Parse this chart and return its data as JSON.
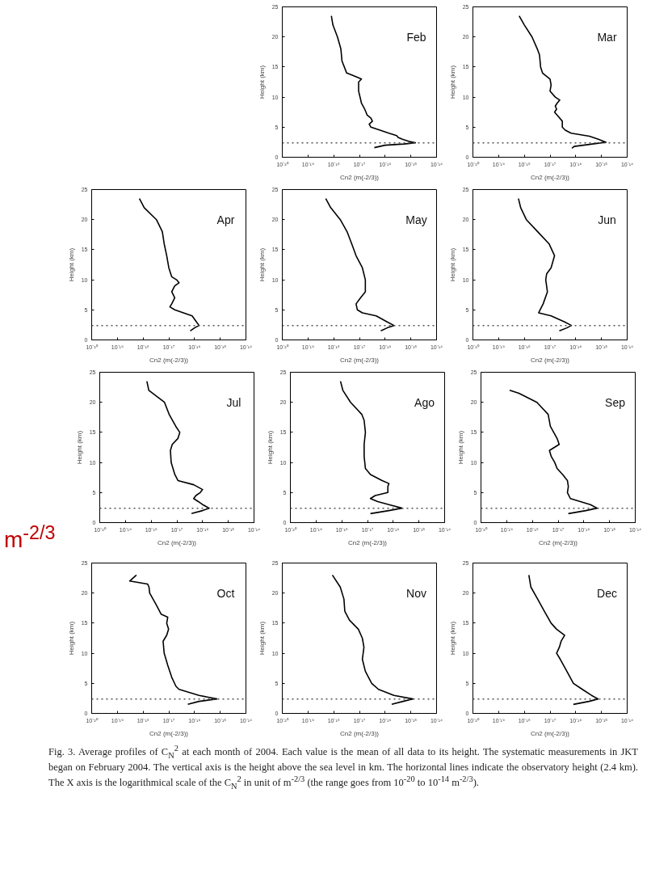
{
  "chart_data": [
    {
      "type": "line",
      "title": "Feb",
      "xlabel": "Cn2 (m(-2/3))",
      "ylabel": "Height (km)",
      "log": "x",
      "xlim": [
        1e-20,
        1e-14
      ],
      "xticks": [
        {
          "value": 1e-20,
          "label": "10⁻²⁰"
        },
        {
          "value": 1e-19,
          "label": "10⁻¹⁹"
        },
        {
          "value": 1e-18,
          "label": "10⁻¹⁸"
        },
        {
          "value": 1e-17,
          "label": "10⁻¹⁷"
        },
        {
          "value": 1e-16,
          "label": "10⁻¹⁶"
        },
        {
          "value": 1e-15,
          "label": "10⁻¹⁵"
        },
        {
          "value": 1e-14,
          "label": "10⁻¹⁴"
        }
      ],
      "ylim": [
        0,
        25
      ],
      "yticks": [
        0,
        5,
        10,
        15,
        20,
        25
      ],
      "grid": false,
      "marker": "none",
      "line_style": "solid",
      "ref_lines": [
        {
          "axis": "y",
          "value": 2.4,
          "label": null,
          "color": "#555555",
          "line_style": "dotted"
        }
      ],
      "series": [
        {
          "color": "#000000",
          "x": [
            8.1e-19,
            9.3e-19,
            1.4e-18,
            1.9e-18,
            2.1e-18,
            3.2e-18,
            6.3e-18,
            1.2e-17,
            9.3e-18,
            9.3e-18,
            1.2e-17,
            1.6e-17,
            1.8e-17,
            2e-17,
            2.8e-17,
            3.2e-17,
            2.4e-17,
            2.8e-17,
            6.3e-17,
            1.4e-16,
            2.8e-16,
            3.2e-16,
            4.7e-16,
            9.1e-16,
            1.5e-15,
            5.4e-16,
            1e-16,
            3.8e-17
          ],
          "values": [
            23.5,
            22,
            20,
            18,
            16,
            14,
            13.5,
            13,
            12.5,
            11,
            9,
            8,
            7.5,
            7,
            6.5,
            6,
            5.5,
            5,
            4.5,
            4,
            3.6,
            3.3,
            3,
            2.6,
            2.4,
            2.2,
            2,
            1.6
          ]
        }
      ]
    },
    {
      "type": "line",
      "title": "Mar",
      "xlabel": "Cn2 (m(-2/3))",
      "ylabel": "Height (km)",
      "log": "x",
      "xlim": [
        1e-20,
        1e-14
      ],
      "xticks": [
        {
          "value": 1e-20,
          "label": "10⁻²⁰"
        },
        {
          "value": 1e-19,
          "label": "10⁻¹⁹"
        },
        {
          "value": 1e-18,
          "label": "10⁻¹⁸"
        },
        {
          "value": 1e-17,
          "label": "10⁻¹⁷"
        },
        {
          "value": 1e-16,
          "label": "10⁻¹⁶"
        },
        {
          "value": 1e-15,
          "label": "10⁻¹⁵"
        },
        {
          "value": 1e-14,
          "label": "10⁻¹⁴"
        }
      ],
      "ylim": [
        0,
        25
      ],
      "yticks": [
        0,
        5,
        10,
        15,
        20,
        25
      ],
      "grid": false,
      "marker": "none",
      "line_style": "solid",
      "ref_lines": [
        {
          "axis": "y",
          "value": 2.4,
          "label": null,
          "color": "#555555",
          "line_style": "dotted"
        }
      ],
      "series": [
        {
          "color": "#000000",
          "x": [
            6.3e-19,
            1e-18,
            2e-18,
            3.2e-18,
            3.9e-18,
            4.3e-18,
            5.1e-18,
            1e-17,
            1.1e-17,
            1e-17,
            1.6e-17,
            2.4e-17,
            1.9e-17,
            1.6e-17,
            1.8e-17,
            1.5e-17,
            1.9e-17,
            3e-17,
            3e-17,
            3.9e-17,
            6.6e-17,
            3.4e-16,
            7.6e-16,
            1.5e-15,
            4.5e-16,
            8.7e-17,
            7.1e-17
          ],
          "values": [
            23.5,
            22,
            20,
            18,
            17,
            15,
            14,
            13,
            12,
            11,
            10,
            9.5,
            9,
            8.5,
            8,
            7.5,
            7,
            6,
            5,
            4.5,
            4,
            3.5,
            3,
            2.5,
            2.2,
            1.8,
            1.5
          ]
        }
      ]
    },
    {
      "type": "line",
      "title": "Apr",
      "xlabel": "Cn2 (m(-2/3))",
      "ylabel": "Height (km)",
      "log": "x",
      "xlim": [
        1e-20,
        1e-14
      ],
      "xticks": [
        {
          "value": 1e-20,
          "label": "10⁻²⁰"
        },
        {
          "value": 1e-19,
          "label": "10⁻¹⁹"
        },
        {
          "value": 1e-18,
          "label": "10⁻¹⁸"
        },
        {
          "value": 1e-17,
          "label": "10⁻¹⁷"
        },
        {
          "value": 1e-16,
          "label": "10⁻¹⁶"
        },
        {
          "value": 1e-15,
          "label": "10⁻¹⁵"
        },
        {
          "value": 1e-14,
          "label": "10⁻¹⁴"
        }
      ],
      "ylim": [
        0,
        25
      ],
      "yticks": [
        0,
        5,
        10,
        15,
        20,
        25
      ],
      "grid": false,
      "marker": "none",
      "line_style": "solid",
      "ref_lines": [
        {
          "axis": "y",
          "value": 2.4,
          "label": null,
          "color": "#555555",
          "line_style": "dotted"
        }
      ],
      "series": [
        {
          "color": "#000000",
          "x": [
            7.2e-19,
            1.1e-18,
            3.3e-18,
            5.6e-18,
            6.6e-18,
            8.3e-18,
            1e-17,
            1.3e-17,
            2e-17,
            2.5e-17,
            1.7e-17,
            1.3e-17,
            1.7e-17,
            1.3e-17,
            1.1e-17,
            1.7e-17,
            3.7e-17,
            8.1e-17,
            1.1e-16,
            1.5e-16,
            1e-16,
            6.8e-17
          ],
          "values": [
            23.5,
            22,
            20,
            18,
            16,
            14,
            12,
            10.5,
            10,
            9.5,
            9,
            8,
            7,
            6,
            5.5,
            5,
            4.5,
            4,
            3.2,
            2.4,
            2,
            1.5
          ]
        }
      ]
    },
    {
      "type": "line",
      "title": "May",
      "xlabel": "Cn2 (m(-2/3))",
      "ylabel": "Height (km)",
      "log": "x",
      "xlim": [
        1e-20,
        1e-14
      ],
      "xticks": [
        {
          "value": 1e-20,
          "label": "10⁻²⁰"
        },
        {
          "value": 1e-19,
          "label": "10⁻¹⁹"
        },
        {
          "value": 1e-18,
          "label": "10⁻¹⁸"
        },
        {
          "value": 1e-17,
          "label": "10⁻¹⁷"
        },
        {
          "value": 1e-16,
          "label": "10⁻¹⁶"
        },
        {
          "value": 1e-15,
          "label": "10⁻¹⁵"
        },
        {
          "value": 1e-14,
          "label": "10⁻¹⁴"
        }
      ],
      "ylim": [
        0,
        25
      ],
      "yticks": [
        0,
        5,
        10,
        15,
        20,
        25
      ],
      "grid": false,
      "marker": "none",
      "line_style": "solid",
      "ref_lines": [
        {
          "axis": "y",
          "value": 2.4,
          "label": null,
          "color": "#555555",
          "line_style": "dotted"
        }
      ],
      "series": [
        {
          "color": "#000000",
          "x": [
            4.9e-19,
            7.6e-19,
            1.8e-18,
            3.3e-18,
            5e-18,
            7.4e-18,
            1.3e-17,
            1.7e-17,
            1.7e-17,
            1.1e-17,
            7.4e-18,
            8.3e-18,
            1.3e-17,
            4.5e-17,
            1.2e-16,
            2.2e-16,
            1.2e-16,
            6.8e-17
          ],
          "values": [
            23.5,
            22,
            20,
            18,
            16,
            14,
            12,
            10,
            8,
            7,
            6,
            5,
            4.5,
            4,
            3,
            2.4,
            2,
            1.5
          ]
        }
      ]
    },
    {
      "type": "line",
      "title": "Jun",
      "xlabel": "Cn2 (m(-2/3))",
      "ylabel": "Height (km)",
      "log": "x",
      "xlim": [
        1e-20,
        1e-14
      ],
      "xticks": [
        {
          "value": 1e-20,
          "label": "10⁻²⁰"
        },
        {
          "value": 1e-19,
          "label": "10⁻¹⁹"
        },
        {
          "value": 1e-18,
          "label": "10⁻¹⁸"
        },
        {
          "value": 1e-17,
          "label": "10⁻¹⁷"
        },
        {
          "value": 1e-16,
          "label": "10⁻¹⁶"
        },
        {
          "value": 1e-15,
          "label": "10⁻¹⁵"
        },
        {
          "value": 1e-14,
          "label": "10⁻¹⁴"
        }
      ],
      "ylim": [
        0,
        25
      ],
      "yticks": [
        0,
        5,
        10,
        15,
        20,
        25
      ],
      "grid": false,
      "marker": "none",
      "line_style": "solid",
      "ref_lines": [
        {
          "axis": "y",
          "value": 2.4,
          "label": null,
          "color": "#555555",
          "line_style": "dotted"
        }
      ],
      "series": [
        {
          "color": "#000000",
          "x": [
            5.9e-19,
            7.2e-19,
            1.2e-18,
            3.3e-18,
            9.1e-18,
            1.5e-17,
            1.1e-17,
            7.4e-18,
            6.8e-18,
            7.9e-18,
            5.4e-18,
            4.1e-18,
            3.6e-18,
            1.1e-17,
            3.7e-17,
            6.8e-17,
            4.5e-17,
            2.3e-17
          ],
          "values": [
            23.5,
            22,
            20,
            18,
            16,
            14,
            12,
            11,
            10,
            8,
            6,
            5,
            4.5,
            4,
            3,
            2.4,
            2,
            1.5
          ]
        }
      ]
    },
    {
      "type": "line",
      "title": "Jul",
      "xlabel": "Cn2 (m(-2/3))",
      "ylabel": "Height (km)",
      "log": "x",
      "xlim": [
        1e-20,
        1e-14
      ],
      "xticks": [
        {
          "value": 1e-20,
          "label": "10⁻²⁰"
        },
        {
          "value": 1e-19,
          "label": "10⁻¹⁹"
        },
        {
          "value": 1e-18,
          "label": "10⁻¹⁸"
        },
        {
          "value": 1e-17,
          "label": "10⁻¹⁷"
        },
        {
          "value": 1e-16,
          "label": "10⁻¹⁶"
        },
        {
          "value": 1e-15,
          "label": "10⁻¹⁵"
        },
        {
          "value": 1e-14,
          "label": "10⁻¹⁴"
        }
      ],
      "ylim": [
        0,
        25
      ],
      "yticks": [
        0,
        5,
        10,
        15,
        20,
        25
      ],
      "grid": false,
      "marker": "none",
      "line_style": "solid",
      "ref_lines": [
        {
          "axis": "y",
          "value": 2.4,
          "label": null,
          "color": "#555555",
          "line_style": "dotted"
        }
      ],
      "annotations": [
        "m$^{-2/3}$"
      ],
      "series": [
        {
          "color": "#000000",
          "x": [
            6.8e-19,
            8.1e-19,
            3.3e-18,
            5e-18,
            9.1e-18,
            1.3e-17,
            1.1e-17,
            6.6e-18,
            5.6e-18,
            6e-18,
            8.3e-18,
            1.1e-17,
            4.5e-17,
            1e-16,
            8.1e-17,
            5.5e-17,
            4.5e-17,
            6.8e-17,
            1e-16,
            1.8e-16,
            1e-16,
            3.7e-17
          ],
          "values": [
            23.5,
            22,
            20,
            18,
            16,
            15,
            14,
            13,
            12,
            10,
            8,
            7,
            6.3,
            5.5,
            5,
            4.5,
            4,
            3.5,
            3,
            2.4,
            2,
            1.5
          ]
        }
      ]
    },
    {
      "type": "line",
      "title": "Ago",
      "xlabel": "Cn2 (m(-2/3))",
      "ylabel": "Height (km)",
      "log": "x",
      "xlim": [
        1e-20,
        1e-14
      ],
      "xticks": [
        {
          "value": 1e-20,
          "label": "10⁻²⁰"
        },
        {
          "value": 1e-19,
          "label": "10⁻¹⁹"
        },
        {
          "value": 1e-18,
          "label": "10⁻¹⁸"
        },
        {
          "value": 1e-17,
          "label": "10⁻¹⁷"
        },
        {
          "value": 1e-16,
          "label": "10⁻¹⁶"
        },
        {
          "value": 1e-15,
          "label": "10⁻¹⁵"
        },
        {
          "value": 1e-14,
          "label": "10⁻¹⁴"
        }
      ],
      "ylim": [
        0,
        25
      ],
      "yticks": [
        0,
        5,
        10,
        15,
        20,
        25
      ],
      "grid": false,
      "marker": "none",
      "line_style": "solid",
      "ref_lines": [
        {
          "axis": "y",
          "value": 2.4,
          "label": null,
          "color": "#555555",
          "line_style": "dotted"
        }
      ],
      "series": [
        {
          "color": "#000000",
          "x": [
            8.9e-19,
            1.1e-18,
            2.2e-18,
            6e-18,
            7.4e-18,
            8.3e-18,
            7.4e-18,
            7.4e-18,
            8.3e-18,
            1.3e-17,
            3.7e-17,
            6.8e-17,
            6.2e-17,
            6.2e-17,
            2e-17,
            1.3e-17,
            2.5e-17,
            6.8e-17,
            2.2e-16,
            6.8e-17,
            1.3e-17
          ],
          "values": [
            23.5,
            22,
            20,
            18,
            17,
            15,
            13,
            11,
            9,
            8,
            7,
            6.5,
            6,
            5,
            4.5,
            4,
            3.5,
            3,
            2.4,
            2,
            1.5
          ]
        }
      ]
    },
    {
      "type": "line",
      "title": "Sep",
      "xlabel": "Cn2 (m(-2/3))",
      "ylabel": "Height (km)",
      "log": "x",
      "xlim": [
        1e-20,
        1e-14
      ],
      "xticks": [
        {
          "value": 1e-20,
          "label": "10⁻²⁰"
        },
        {
          "value": 1e-19,
          "label": "10⁻¹⁹"
        },
        {
          "value": 1e-18,
          "label": "10⁻¹⁸"
        },
        {
          "value": 1e-17,
          "label": "10⁻¹⁷"
        },
        {
          "value": 1e-16,
          "label": "10⁻¹⁶"
        },
        {
          "value": 1e-15,
          "label": "10⁻¹⁵"
        },
        {
          "value": 1e-14,
          "label": "10⁻¹⁴"
        }
      ],
      "ylim": [
        0,
        25
      ],
      "yticks": [
        0,
        5,
        10,
        15,
        20,
        25
      ],
      "grid": false,
      "marker": "none",
      "line_style": "solid",
      "ref_lines": [
        {
          "axis": "y",
          "value": 2.4,
          "label": null,
          "color": "#555555",
          "line_style": "dotted"
        }
      ],
      "series": [
        {
          "color": "#000000",
          "x": [
            1.3e-19,
            3e-19,
            1.5e-18,
            4.1e-18,
            5e-18,
            9.1e-18,
            1.1e-17,
            4.6e-18,
            5.4e-18,
            7.4e-18,
            9.1e-18,
            1.5e-17,
            2.3e-17,
            2.5e-17,
            2.3e-17,
            3e-17,
            1.8e-16,
            3.3e-16,
            1.2e-16,
            2.5e-17
          ],
          "values": [
            22,
            21.5,
            20,
            18,
            16,
            14,
            13,
            12,
            11,
            10,
            9,
            8,
            7,
            6,
            5,
            4,
            3,
            2.4,
            2,
            1.5
          ]
        }
      ]
    },
    {
      "type": "line",
      "title": "Oct",
      "xlabel": "Cn2 (m(-2/3))",
      "ylabel": "Height (km)",
      "log": "x",
      "xlim": [
        1e-20,
        1e-14
      ],
      "xticks": [
        {
          "value": 1e-20,
          "label": "10⁻²⁰"
        },
        {
          "value": 1e-19,
          "label": "10⁻¹⁹"
        },
        {
          "value": 1e-18,
          "label": "10⁻¹⁸"
        },
        {
          "value": 1e-17,
          "label": "10⁻¹⁷"
        },
        {
          "value": 1e-16,
          "label": "10⁻¹⁶"
        },
        {
          "value": 1e-15,
          "label": "10⁻¹⁵"
        },
        {
          "value": 1e-14,
          "label": "10⁻¹⁴"
        }
      ],
      "ylim": [
        0,
        25
      ],
      "yticks": [
        0,
        5,
        10,
        15,
        20,
        25
      ],
      "grid": false,
      "marker": "none",
      "line_style": "solid",
      "ref_lines": [
        {
          "axis": "y",
          "value": 2.4,
          "label": null,
          "color": "#555555",
          "line_style": "dotted"
        }
      ],
      "series": [
        {
          "color": "#000000",
          "x": [
            5.5e-19,
            3e-19,
            1.5e-18,
            1.7e-18,
            1.8e-18,
            3.3e-18,
            5e-18,
            9.1e-18,
            8.3e-18,
            9.8e-18,
            8.3e-18,
            6e-18,
            6.6e-18,
            9.1e-18,
            1.3e-17,
            1.9e-17,
            2.5e-17,
            1.5e-16,
            7.4e-16,
            1.5e-16,
            5.5e-17
          ],
          "values": [
            23,
            22,
            21.5,
            21,
            20,
            18,
            16.5,
            16,
            15,
            14,
            13,
            12,
            10,
            8,
            6,
            4.5,
            4,
            3,
            2.4,
            2,
            1.5
          ]
        }
      ]
    },
    {
      "type": "line",
      "title": "Nov",
      "xlabel": "Cn2 (m(-2/3))",
      "ylabel": "Height (km)",
      "log": "x",
      "xlim": [
        1e-20,
        1e-14
      ],
      "xticks": [
        {
          "value": 1e-20,
          "label": "10⁻²⁰"
        },
        {
          "value": 1e-19,
          "label": "10⁻¹⁹"
        },
        {
          "value": 1e-18,
          "label": "10⁻¹⁸"
        },
        {
          "value": 1e-17,
          "label": "10⁻¹⁷"
        },
        {
          "value": 1e-16,
          "label": "10⁻¹⁶"
        },
        {
          "value": 1e-15,
          "label": "10⁻¹⁵"
        },
        {
          "value": 1e-14,
          "label": "10⁻¹⁴"
        }
      ],
      "ylim": [
        0,
        25
      ],
      "yticks": [
        0,
        5,
        10,
        15,
        20,
        25
      ],
      "grid": false,
      "marker": "none",
      "line_style": "solid",
      "ref_lines": [
        {
          "axis": "y",
          "value": 2.4,
          "label": null,
          "color": "#555555",
          "line_style": "dotted"
        }
      ],
      "series": [
        {
          "color": "#000000",
          "x": [
            8.9e-19,
            1.8e-18,
            2.5e-18,
            2.7e-18,
            4.1e-18,
            9.1e-18,
            1.3e-17,
            1.5e-17,
            1.3e-17,
            1.7e-17,
            3e-17,
            5.5e-17,
            2.2e-16,
            1.2e-15,
            5e-16,
            1.8e-16
          ],
          "values": [
            23,
            21,
            19,
            17,
            15.5,
            14,
            12.5,
            11,
            9,
            7,
            5,
            4,
            3,
            2.4,
            2,
            1.5
          ]
        }
      ]
    },
    {
      "type": "line",
      "title": "Dec",
      "xlabel": "Cn2 (m(-2/3))",
      "ylabel": "Height (km)",
      "log": "x",
      "xlim": [
        1e-20,
        1e-14
      ],
      "xticks": [
        {
          "value": 1e-20,
          "label": "10⁻²⁰"
        },
        {
          "value": 1e-19,
          "label": "10⁻¹⁹"
        },
        {
          "value": 1e-18,
          "label": "10⁻¹⁸"
        },
        {
          "value": 1e-17,
          "label": "10⁻¹⁷"
        },
        {
          "value": 1e-16,
          "label": "10⁻¹⁶"
        },
        {
          "value": 1e-15,
          "label": "10⁻¹⁵"
        },
        {
          "value": 1e-14,
          "label": "10⁻¹⁴"
        }
      ],
      "ylim": [
        0,
        25
      ],
      "yticks": [
        0,
        5,
        10,
        15,
        20,
        25
      ],
      "grid": false,
      "marker": "none",
      "line_style": "solid",
      "ref_lines": [
        {
          "axis": "y",
          "value": 2.4,
          "label": null,
          "color": "#555555",
          "line_style": "dotted"
        }
      ],
      "annotations": [
        "Fig. 3. Average profiles of C$_{N}$$^{2}$ at each month of 2004. Each value is the mean of all data to its height. The systematic measurements in JKT began on February 2004. The vertical axis is the height above the sea level in km. The horizontal lines indicate the observatory height (2.4 km). The X axis is the logarithmical scale of the C$_{N}$$^{2}$ in unit of m$^{-2/3}$ (the range goes from 10$^{-20}$ to 10$^{-14}$ m$^{-2/3}$)."
      ],
      "series": [
        {
          "color": "#000000",
          "x": [
            1.5e-18,
            1.8e-18,
            3.3e-18,
            6e-18,
            1.1e-17,
            1.8e-17,
            3.7e-17,
            2.7e-17,
            2.3e-17,
            1.8e-17,
            2.5e-17,
            4.5e-17,
            8.1e-17,
            1.8e-16,
            4.1e-16,
            7.4e-16,
            3.3e-16,
            8.1e-17
          ],
          "values": [
            23,
            21,
            19,
            17,
            15,
            14,
            13,
            12,
            11,
            10,
            9,
            7,
            5,
            4,
            3,
            2.4,
            2,
            1.5
          ]
        }
      ]
    }
  ]
}
